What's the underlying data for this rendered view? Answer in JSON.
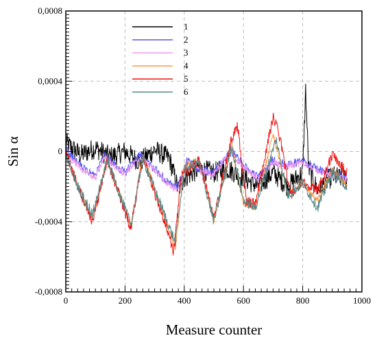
{
  "chart_data": {
    "type": "line",
    "title": "",
    "xlabel": "Measure counter",
    "ylabel": "Sin α",
    "xlim": [
      0,
      1000
    ],
    "ylim": [
      -0.0008,
      0.0008
    ],
    "x_ticks": [
      0,
      200,
      400,
      600,
      800,
      1000
    ],
    "y_ticks": [
      -0.0008,
      -0.0004,
      0,
      0.0004,
      0.0008
    ],
    "x_tick_labels": [
      "0",
      "200",
      "400",
      "600",
      "800",
      "1000"
    ],
    "y_tick_labels": [
      "-0,0008",
      "-0,0004",
      "0",
      "0,0004",
      "0,0008"
    ],
    "grid": true,
    "legend_position": "top-left",
    "series": [
      {
        "name": "1",
        "color": "#000000",
        "noise": 6e-05,
        "points": [
          [
            0,
            5e-05
          ],
          [
            50,
            -2e-05
          ],
          [
            100,
            2e-05
          ],
          [
            150,
            -3e-05
          ],
          [
            200,
            0.0
          ],
          [
            250,
            -6e-05
          ],
          [
            300,
            1e-05
          ],
          [
            350,
            -4e-05
          ],
          [
            380,
            -0.00022
          ],
          [
            400,
            -0.00015
          ],
          [
            450,
            -0.0001
          ],
          [
            500,
            -0.00012
          ],
          [
            550,
            -0.0001
          ],
          [
            600,
            -0.00015
          ],
          [
            650,
            -0.0002
          ],
          [
            700,
            -0.00012
          ],
          [
            750,
            -0.0002
          ],
          [
            800,
            -0.00012
          ],
          [
            810,
            0.00035
          ],
          [
            820,
            -0.0001
          ],
          [
            850,
            -0.00022
          ],
          [
            900,
            -0.00014
          ],
          [
            950,
            -0.00016
          ]
        ]
      },
      {
        "name": "2",
        "color": "#5555ee",
        "noise": 2.5e-05,
        "points": [
          [
            0,
            2e-05
          ],
          [
            30,
            -5e-05
          ],
          [
            60,
            -0.0001
          ],
          [
            100,
            -0.00014
          ],
          [
            130,
            -2e-05
          ],
          [
            160,
            -7e-05
          ],
          [
            200,
            -0.00012
          ],
          [
            250,
            -2e-05
          ],
          [
            300,
            -0.0001
          ],
          [
            360,
            -0.0002
          ],
          [
            380,
            -0.0002
          ],
          [
            410,
            -5e-05
          ],
          [
            450,
            -0.0001
          ],
          [
            500,
            -0.00012
          ],
          [
            530,
            -5e-05
          ],
          [
            560,
            0.0
          ],
          [
            600,
            -8e-05
          ],
          [
            650,
            -0.00015
          ],
          [
            700,
            -5e-05
          ],
          [
            750,
            -8e-05
          ],
          [
            800,
            -5e-05
          ],
          [
            850,
            -0.0001
          ],
          [
            900,
            -0.00013
          ],
          [
            950,
            -0.00015
          ]
        ]
      },
      {
        "name": "3",
        "color": "#ee99ee",
        "noise": 2e-05,
        "points": [
          [
            0,
            -2e-05
          ],
          [
            30,
            -6e-05
          ],
          [
            60,
            -0.00011
          ],
          [
            100,
            -0.00015
          ],
          [
            130,
            -3e-05
          ],
          [
            160,
            -8e-05
          ],
          [
            200,
            -0.00013
          ],
          [
            250,
            -3e-05
          ],
          [
            300,
            -0.00011
          ],
          [
            360,
            -0.00021
          ],
          [
            380,
            -0.00021
          ],
          [
            410,
            -6e-05
          ],
          [
            450,
            -0.00011
          ],
          [
            500,
            -0.00013
          ],
          [
            530,
            -6e-05
          ],
          [
            560,
            -1e-05
          ],
          [
            600,
            -9e-05
          ],
          [
            650,
            -0.00016
          ],
          [
            700,
            -6e-05
          ],
          [
            750,
            -9e-05
          ],
          [
            800,
            -6e-05
          ],
          [
            850,
            -0.00011
          ],
          [
            900,
            -0.00014
          ],
          [
            950,
            -0.00016
          ]
        ]
      },
      {
        "name": "4",
        "color": "#ff9944",
        "noise": 2e-05,
        "points": [
          [
            0,
            0.0
          ],
          [
            40,
            -0.0002
          ],
          [
            90,
            -0.00038
          ],
          [
            140,
            -5e-05
          ],
          [
            220,
            -0.00042
          ],
          [
            260,
            -2e-05
          ],
          [
            370,
            -0.00055
          ],
          [
            400,
            -8e-05
          ],
          [
            450,
            -5e-05
          ],
          [
            500,
            -0.0004
          ],
          [
            560,
            3e-05
          ],
          [
            600,
            -0.0003
          ],
          [
            640,
            -0.00032
          ],
          [
            700,
            0.0001
          ],
          [
            750,
            -0.00025
          ],
          [
            800,
            -0.00018
          ],
          [
            850,
            -0.00028
          ],
          [
            900,
            -0.0001
          ],
          [
            950,
            -0.0002
          ]
        ]
      },
      {
        "name": "5",
        "color": "#ee1111",
        "noise": 3e-05,
        "points": [
          [
            0,
            0.0
          ],
          [
            40,
            -0.0002
          ],
          [
            90,
            -0.0004
          ],
          [
            140,
            -5e-05
          ],
          [
            220,
            -0.00044
          ],
          [
            260,
            -2e-05
          ],
          [
            365,
            -0.00057
          ],
          [
            390,
            -0.00014
          ],
          [
            450,
            -5e-05
          ],
          [
            500,
            -0.00038
          ],
          [
            560,
            7e-05
          ],
          [
            580,
            0.00015
          ],
          [
            610,
            -0.00028
          ],
          [
            640,
            -0.0003
          ],
          [
            700,
            0.0002
          ],
          [
            720,
            0.0001
          ],
          [
            760,
            -0.00025
          ],
          [
            800,
            -0.00018
          ],
          [
            850,
            -0.00022
          ],
          [
            880,
            -0.0001
          ],
          [
            900,
            -2e-05
          ],
          [
            950,
            -0.00012
          ]
        ]
      },
      {
        "name": "6",
        "color": "#558888",
        "noise": 3e-05,
        "points": [
          [
            0,
            -2e-05
          ],
          [
            40,
            -0.0002
          ],
          [
            90,
            -0.00036
          ],
          [
            140,
            -5e-05
          ],
          [
            220,
            -0.00042
          ],
          [
            260,
            -4e-05
          ],
          [
            370,
            -0.00052
          ],
          [
            400,
            -0.0001
          ],
          [
            450,
            -6e-05
          ],
          [
            500,
            -0.0004
          ],
          [
            560,
            3e-05
          ],
          [
            600,
            -0.00028
          ],
          [
            640,
            -0.00032
          ],
          [
            710,
            7e-05
          ],
          [
            750,
            -0.00025
          ],
          [
            800,
            -0.00018
          ],
          [
            850,
            -0.00032
          ],
          [
            900,
            -0.00012
          ],
          [
            950,
            -0.0002
          ]
        ]
      }
    ]
  }
}
